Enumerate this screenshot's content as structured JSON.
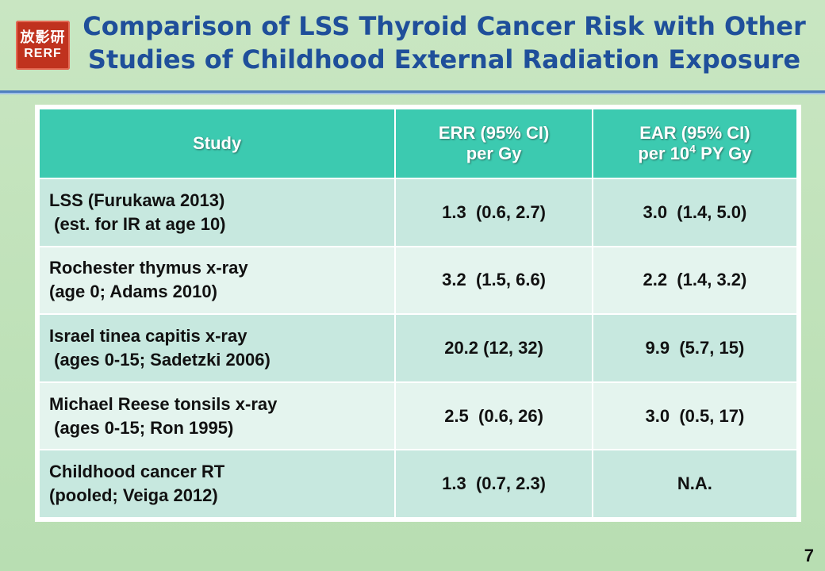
{
  "logo": {
    "kanji": "放影研",
    "latin": "RERF"
  },
  "title": {
    "line1": "Comparison of LSS Thyroid Cancer Risk with Other",
    "line2": "Studies of Childhood External Radiation Exposure"
  },
  "table": {
    "headers": {
      "study": "Study",
      "err_line1": "ERR (95% CI)",
      "err_line2": "per Gy",
      "ear_line1": "EAR (95% CI)",
      "ear_line2_pre": "per 10",
      "ear_line2_sup": "4",
      "ear_line2_post": " PY Gy"
    },
    "rows": [
      {
        "study_line1": "LSS (Furukawa 2013)",
        "study_line2": " (est. for IR at age 10)",
        "err": "1.3  (0.6, 2.7)",
        "ear": "3.0  (1.4, 5.0)"
      },
      {
        "study_line1": "Rochester thymus x-ray",
        "study_line2": "(age 0; Adams 2010)",
        "err": "3.2  (1.5, 6.6)",
        "ear": "2.2  (1.4, 3.2)"
      },
      {
        "study_line1": "Israel tinea capitis x-ray",
        "study_line2": " (ages 0-15; Sadetzki 2006)",
        "err": "20.2 (12, 32)",
        "ear": "9.9  (5.7, 15)"
      },
      {
        "study_line1": "Michael Reese tonsils x-ray",
        "study_line2": " (ages 0-15; Ron 1995)",
        "err": "2.5  (0.6, 26)",
        "ear": "3.0  (0.5, 17)"
      },
      {
        "study_line1": "Childhood cancer RT",
        "study_line2": "(pooled; Veiga 2012)",
        "err": "1.3  (0.7, 2.3)",
        "ear": "N.A."
      }
    ]
  },
  "page_number": "7",
  "colors": {
    "title": "#1f4f9a",
    "header_bg": "#3ccab0",
    "row_dark": "#c7e8df",
    "row_light": "#e4f4ee",
    "logo_bg": "#c0321e"
  }
}
